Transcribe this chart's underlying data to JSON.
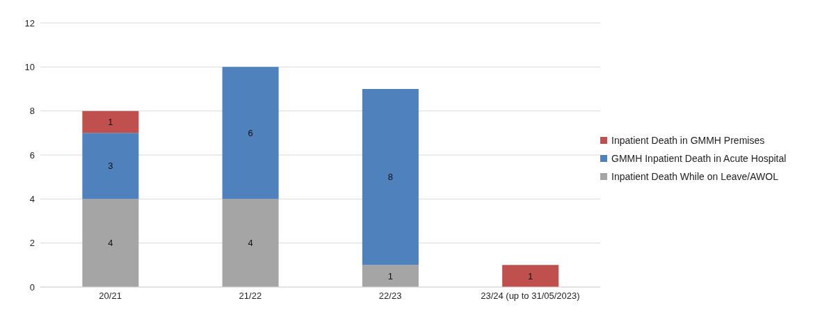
{
  "chart_data": {
    "type": "bar",
    "stacked": true,
    "categories": [
      "20/21",
      "21/22",
      "22/23",
      "23/24 (up to 31/05/2023)"
    ],
    "series": [
      {
        "name": "Inpatient Death While on Leave/AWOL",
        "color": "#a5a5a5",
        "values": [
          4,
          4,
          1,
          null
        ]
      },
      {
        "name": "GMMH Inpatient Death in Acute Hospital",
        "color": "#4f81bd",
        "values": [
          3,
          6,
          8,
          null
        ]
      },
      {
        "name": "Inpatient Death in GMMH Premises",
        "color": "#c0504d",
        "values": [
          1,
          null,
          null,
          1
        ]
      }
    ],
    "ylim": [
      0,
      12
    ],
    "yticks": [
      0,
      2,
      4,
      6,
      8,
      10,
      12
    ],
    "grid": "y",
    "legend": "right",
    "data_labels": true
  }
}
